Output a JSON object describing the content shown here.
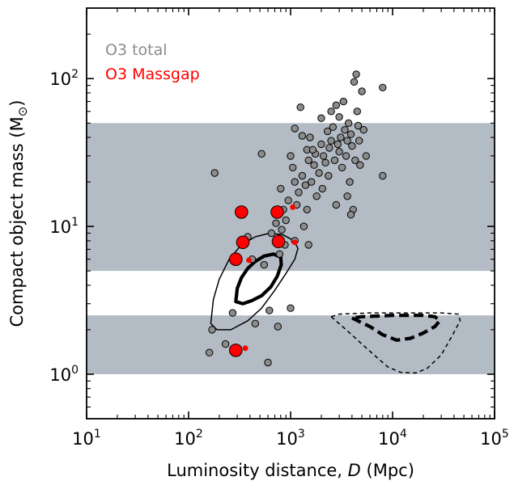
{
  "chart_data": {
    "type": "scatter",
    "title": "",
    "xlabel": "Luminosity distance, D (Mpc)",
    "ylabel": "Compact object mass (M⊙)",
    "xscale": "log",
    "yscale": "log",
    "xlim": [
      10,
      100000
    ],
    "ylim": [
      0.5,
      300
    ],
    "x_tick_labels": [
      {
        "value": 10,
        "base": "10",
        "exp": "1"
      },
      {
        "value": 100,
        "base": "10",
        "exp": "2"
      },
      {
        "value": 1000,
        "base": "10",
        "exp": "3"
      },
      {
        "value": 10000,
        "base": "10",
        "exp": "4"
      },
      {
        "value": 100000,
        "base": "10",
        "exp": "5"
      }
    ],
    "y_tick_labels": [
      {
        "value": 1,
        "base": "10",
        "exp": "0"
      },
      {
        "value": 10,
        "base": "10",
        "exp": "1"
      },
      {
        "value": 100,
        "base": "10",
        "exp": "2"
      }
    ],
    "grid": false,
    "legend_position": "top-left",
    "colors": {
      "band": "#b3bcc5",
      "o3_total": "#8c8c8c",
      "o3_massgap": "#ff0000"
    },
    "bands": [
      {
        "ymin": 5,
        "ymax": 50
      },
      {
        "ymin": 1,
        "ymax": 2.5
      }
    ],
    "series": [
      {
        "name": "O3 total",
        "color": "#8c8c8c",
        "points": [
          [
            180,
            23
          ],
          [
            170,
            2.0
          ],
          [
            160,
            1.4
          ],
          [
            230,
            1.6
          ],
          [
            270,
            2.6
          ],
          [
            380,
            8.5
          ],
          [
            420,
            6.0
          ],
          [
            450,
            2.2
          ],
          [
            520,
            31
          ],
          [
            550,
            5.5
          ],
          [
            600,
            1.2
          ],
          [
            620,
            2.7
          ],
          [
            650,
            9.0
          ],
          [
            720,
            10.5
          ],
          [
            750,
            2.1
          ],
          [
            780,
            6.5
          ],
          [
            800,
            18
          ],
          [
            820,
            9.5
          ],
          [
            850,
            13
          ],
          [
            880,
            7.5
          ],
          [
            900,
            11
          ],
          [
            950,
            15
          ],
          [
            1000,
            2.8
          ],
          [
            1000,
            30
          ],
          [
            1050,
            25
          ],
          [
            1100,
            8
          ],
          [
            1150,
            14
          ],
          [
            1200,
            17
          ],
          [
            1300,
            22
          ],
          [
            1350,
            10
          ],
          [
            1400,
            19
          ],
          [
            1450,
            33
          ],
          [
            1500,
            28
          ],
          [
            1550,
            40
          ],
          [
            1600,
            20
          ],
          [
            1700,
            26
          ],
          [
            1750,
            31
          ],
          [
            1800,
            16
          ],
          [
            1900,
            23
          ],
          [
            2000,
            36
          ],
          [
            2050,
            18
          ],
          [
            2100,
            30
          ],
          [
            2200,
            27
          ],
          [
            2300,
            44
          ],
          [
            2350,
            22
          ],
          [
            2400,
            34
          ],
          [
            2500,
            60
          ],
          [
            2500,
            38
          ],
          [
            2600,
            47
          ],
          [
            2700,
            28
          ],
          [
            2800,
            14
          ],
          [
            2900,
            36
          ],
          [
            3000,
            32
          ],
          [
            3000,
            55
          ],
          [
            3100,
            40
          ],
          [
            3200,
            25
          ],
          [
            3300,
            70
          ],
          [
            3400,
            45
          ],
          [
            3500,
            30
          ],
          [
            3600,
            38
          ],
          [
            3700,
            50
          ],
          [
            3800,
            20
          ],
          [
            3900,
            42
          ],
          [
            4000,
            35
          ],
          [
            4100,
            13
          ],
          [
            4200,
            95
          ],
          [
            4300,
            28
          ],
          [
            4400,
            107
          ],
          [
            4500,
            60
          ],
          [
            4600,
            48
          ],
          [
            4700,
            38
          ],
          [
            4800,
            26
          ],
          [
            5000,
            82
          ],
          [
            5200,
            45
          ],
          [
            5500,
            30
          ],
          [
            3600,
            16
          ],
          [
            3900,
            12
          ],
          [
            8000,
            87
          ],
          [
            8000,
            22
          ],
          [
            1250,
            64
          ],
          [
            1650,
            33
          ],
          [
            2000,
            54
          ],
          [
            1100,
            46
          ],
          [
            1300,
            41
          ],
          [
            1450,
            13
          ],
          [
            1500,
            7.5
          ],
          [
            1100,
            20
          ],
          [
            2800,
            66
          ]
        ]
      },
      {
        "name": "O3 Massgap",
        "color": "#ff0000",
        "points": [
          [
            330,
            12.5,
            "large"
          ],
          [
            740,
            12.5,
            "large"
          ],
          [
            340,
            7.8,
            "large"
          ],
          [
            760,
            7.9,
            "large"
          ],
          [
            290,
            6.0,
            "large"
          ],
          [
            290,
            1.45,
            "large"
          ],
          [
            1050,
            13.5,
            "small"
          ],
          [
            1100,
            7.8,
            "small"
          ],
          [
            390,
            5.9,
            "small"
          ],
          [
            360,
            1.5,
            "small"
          ]
        ]
      }
    ],
    "contours": [
      {
        "style": "solid",
        "weight": "thick",
        "points": [
          [
            290,
            3.1
          ],
          [
            300,
            3.8
          ],
          [
            330,
            4.5
          ],
          [
            380,
            5.2
          ],
          [
            450,
            5.8
          ],
          [
            550,
            6.3
          ],
          [
            680,
            6.5
          ],
          [
            800,
            6.2
          ],
          [
            810,
            5.5
          ],
          [
            740,
            4.6
          ],
          [
            640,
            3.9
          ],
          [
            520,
            3.4
          ],
          [
            420,
            3.15
          ],
          [
            340,
            3.0
          ],
          [
            290,
            3.1
          ]
        ]
      },
      {
        "style": "solid",
        "weight": "thin",
        "points": [
          [
            165,
            2.2
          ],
          [
            175,
            3.2
          ],
          [
            200,
            4.4
          ],
          [
            250,
            6.0
          ],
          [
            330,
            7.5
          ],
          [
            450,
            8.5
          ],
          [
            620,
            9.0
          ],
          [
            840,
            8.8
          ],
          [
            1080,
            8.0
          ],
          [
            1180,
            7.1
          ],
          [
            1100,
            6.0
          ],
          [
            900,
            4.8
          ],
          [
            700,
            3.7
          ],
          [
            520,
            2.8
          ],
          [
            380,
            2.3
          ],
          [
            260,
            2.0
          ],
          [
            190,
            2.0
          ],
          [
            165,
            2.2
          ]
        ]
      },
      {
        "style": "dashed",
        "weight": "thick",
        "points": [
          [
            4000,
            2.4
          ],
          [
            6000,
            2.1
          ],
          [
            8000,
            1.85
          ],
          [
            11000,
            1.7
          ],
          [
            15000,
            1.75
          ],
          [
            20000,
            1.9
          ],
          [
            26000,
            2.1
          ],
          [
            29000,
            2.3
          ],
          [
            26000,
            2.45
          ],
          [
            20000,
            2.5
          ],
          [
            10000,
            2.5
          ],
          [
            5000,
            2.45
          ],
          [
            4000,
            2.4
          ]
        ]
      },
      {
        "style": "dashed",
        "weight": "thin",
        "points": [
          [
            2500,
            2.45
          ],
          [
            3500,
            2.0
          ],
          [
            5000,
            1.6
          ],
          [
            7000,
            1.3
          ],
          [
            9000,
            1.12
          ],
          [
            12000,
            1.03
          ],
          [
            17000,
            1.02
          ],
          [
            22000,
            1.1
          ],
          [
            30000,
            1.35
          ],
          [
            38000,
            1.8
          ],
          [
            46000,
            2.3
          ],
          [
            44000,
            2.55
          ],
          [
            30000,
            2.6
          ],
          [
            15000,
            2.6
          ],
          [
            6000,
            2.6
          ],
          [
            3000,
            2.55
          ],
          [
            2500,
            2.45
          ]
        ]
      }
    ]
  }
}
